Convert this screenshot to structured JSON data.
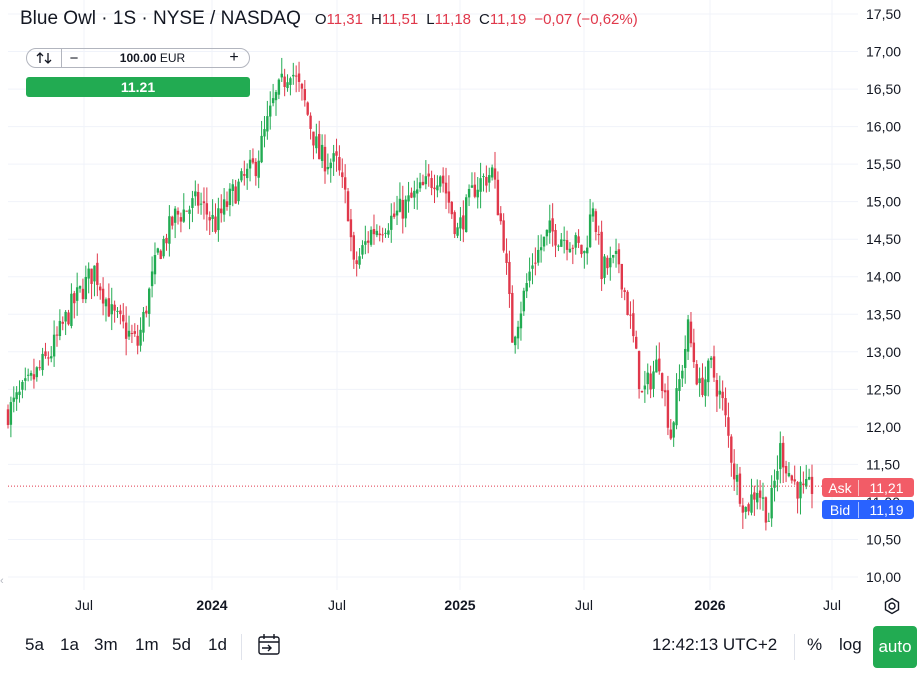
{
  "legend": {
    "symbol": "Blue Owl · 1S · NYSE / NASDAQ",
    "open_label": "O",
    "open_value": "11,31",
    "high_label": "H",
    "high_value": "11,51",
    "low_label": "L",
    "low_value": "11,18",
    "close_label": "C",
    "close_value": "11,19",
    "change": "−0,07 (−0,62%)"
  },
  "order_panel": {
    "swap_icon": "swap-arrows-icon",
    "minus": "−",
    "quantity_value": "100.00",
    "quantity_unit": "EUR",
    "plus": "+",
    "buy_price": "11.21"
  },
  "price_tags": {
    "ask_label": "Ask",
    "ask_value": "11,21",
    "bid_label": "Bid",
    "bid_value": "11,19"
  },
  "toolbar": {
    "ranges": [
      "5a",
      "1a",
      "3m",
      "1m",
      "5d",
      "1d"
    ],
    "goto_icon": "calendar-goto-icon",
    "time": "12:42:13 UTC+2",
    "percent": "%",
    "log": "log",
    "auto": "auto"
  },
  "settings_icon": "gear-icon",
  "colors": {
    "up": "#22ab52",
    "down": "#e0384b",
    "ask": "#f25c67",
    "bid": "#2962ff",
    "accent": "#22ab52"
  },
  "chart_data": {
    "type": "candlestick",
    "y_axis": {
      "min": 10.0,
      "max": 17.5,
      "step": 0.5,
      "labels": [
        "10,00",
        "10,50",
        "11,00",
        "11,50",
        "12,00",
        "12,50",
        "13,00",
        "13,50",
        "14,00",
        "14,50",
        "15,00",
        "15,50",
        "16,00",
        "16,50",
        "17,00",
        "17,50"
      ]
    },
    "x_axis": {
      "labels": [
        "Jul",
        "2024",
        "Jul",
        "2025",
        "Jul",
        "2026",
        "Jul"
      ],
      "bold": [
        false,
        true,
        false,
        true,
        false,
        true,
        false
      ]
    },
    "grid": true,
    "ask_line": 11.21,
    "anchors": [
      {
        "i": 0,
        "p": 12.2
      },
      {
        "i": 8,
        "p": 12.6
      },
      {
        "i": 15,
        "p": 13.0
      },
      {
        "i": 22,
        "p": 13.6
      },
      {
        "i": 30,
        "p": 14.1
      },
      {
        "i": 36,
        "p": 13.5
      },
      {
        "i": 45,
        "p": 13.1
      },
      {
        "i": 52,
        "p": 14.3
      },
      {
        "i": 58,
        "p": 14.8
      },
      {
        "i": 66,
        "p": 15.0
      },
      {
        "i": 72,
        "p": 14.7
      },
      {
        "i": 78,
        "p": 15.1
      },
      {
        "i": 86,
        "p": 15.5
      },
      {
        "i": 92,
        "p": 16.3
      },
      {
        "i": 98,
        "p": 16.8
      },
      {
        "i": 103,
        "p": 16.3
      },
      {
        "i": 108,
        "p": 15.6
      },
      {
        "i": 114,
        "p": 15.5
      },
      {
        "i": 118,
        "p": 14.9
      },
      {
        "i": 120,
        "p": 14.1
      },
      {
        "i": 126,
        "p": 14.6
      },
      {
        "i": 134,
        "p": 14.8
      },
      {
        "i": 142,
        "p": 15.1
      },
      {
        "i": 150,
        "p": 15.4
      },
      {
        "i": 156,
        "p": 14.6
      },
      {
        "i": 162,
        "p": 15.2
      },
      {
        "i": 168,
        "p": 15.4
      },
      {
        "i": 172,
        "p": 14.5
      },
      {
        "i": 175,
        "p": 13.2
      },
      {
        "i": 178,
        "p": 13.6
      },
      {
        "i": 182,
        "p": 14.2
      },
      {
        "i": 188,
        "p": 14.6
      },
      {
        "i": 195,
        "p": 14.5
      },
      {
        "i": 200,
        "p": 14.3
      },
      {
        "i": 203,
        "p": 15.0
      },
      {
        "i": 206,
        "p": 14.1
      },
      {
        "i": 212,
        "p": 14.2
      },
      {
        "i": 216,
        "p": 13.4
      },
      {
        "i": 220,
        "p": 12.4
      },
      {
        "i": 226,
        "p": 12.9
      },
      {
        "i": 230,
        "p": 11.9
      },
      {
        "i": 236,
        "p": 13.3
      },
      {
        "i": 240,
        "p": 12.5
      },
      {
        "i": 244,
        "p": 12.8
      },
      {
        "i": 248,
        "p": 12.3
      },
      {
        "i": 252,
        "p": 11.4
      },
      {
        "i": 256,
        "p": 10.9
      },
      {
        "i": 260,
        "p": 11.2
      },
      {
        "i": 264,
        "p": 10.8
      },
      {
        "i": 268,
        "p": 11.7
      },
      {
        "i": 272,
        "p": 11.3
      },
      {
        "i": 276,
        "p": 11.1
      },
      {
        "i": 279,
        "p": 11.2
      }
    ],
    "candle_count": 280,
    "x_start": 8,
    "x_end": 812
  }
}
